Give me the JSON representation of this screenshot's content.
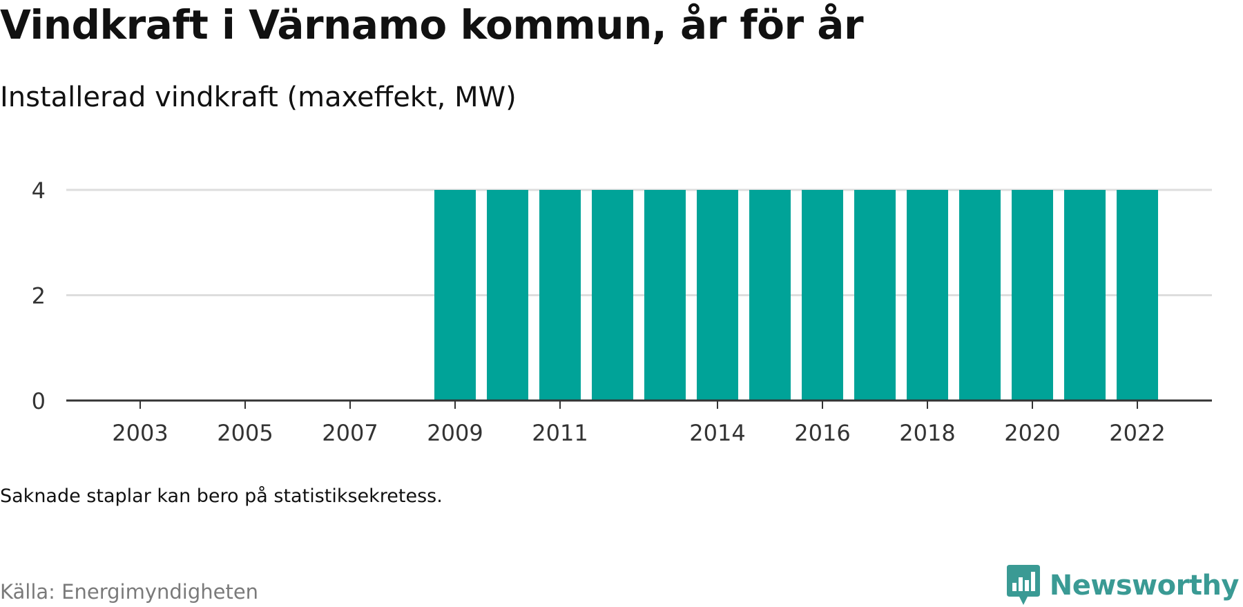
{
  "title": "Vindkraft i Värnamo kommun, år för år",
  "subtitle": "Installerad vindkraft (maxeffekt, MW)",
  "note": "Saknade staplar kan bero på statistiksekretess.",
  "source": "Källa: Energimyndigheten",
  "brand": {
    "name": "Newsworthy",
    "logo_icon": "newsworthy-logo-icon",
    "color": "#3a9a94"
  },
  "chart_data": {
    "type": "bar",
    "title": "Vindkraft i Värnamo kommun, år för år",
    "subtitle": "Installerad vindkraft (maxeffekt, MW)",
    "categories": [
      "2002",
      "2003",
      "2004",
      "2005",
      "2006",
      "2007",
      "2008",
      "2009",
      "2010",
      "2011",
      "2012",
      "2013",
      "2014",
      "2015",
      "2016",
      "2017",
      "2018",
      "2019",
      "2020",
      "2021",
      "2022",
      "2023"
    ],
    "values": [
      null,
      null,
      null,
      null,
      null,
      null,
      null,
      4,
      4,
      4,
      4,
      4,
      4,
      4,
      4,
      4,
      4,
      4,
      4,
      4,
      4,
      null
    ],
    "x_tick_labels": [
      "2003",
      "2005",
      "2007",
      "2009",
      "2011",
      "2014",
      "2016",
      "2018",
      "2020",
      "2022"
    ],
    "x_tick_positions": [
      2003,
      2005,
      2007,
      2009,
      2011,
      2014,
      2016,
      2018,
      2020,
      2022
    ],
    "y_ticks": [
      0,
      2,
      4
    ],
    "ylim": [
      0,
      4
    ],
    "grid": true,
    "bar_color": "#00a398",
    "grid_color": "#dddddd",
    "axis_color": "#333333"
  }
}
